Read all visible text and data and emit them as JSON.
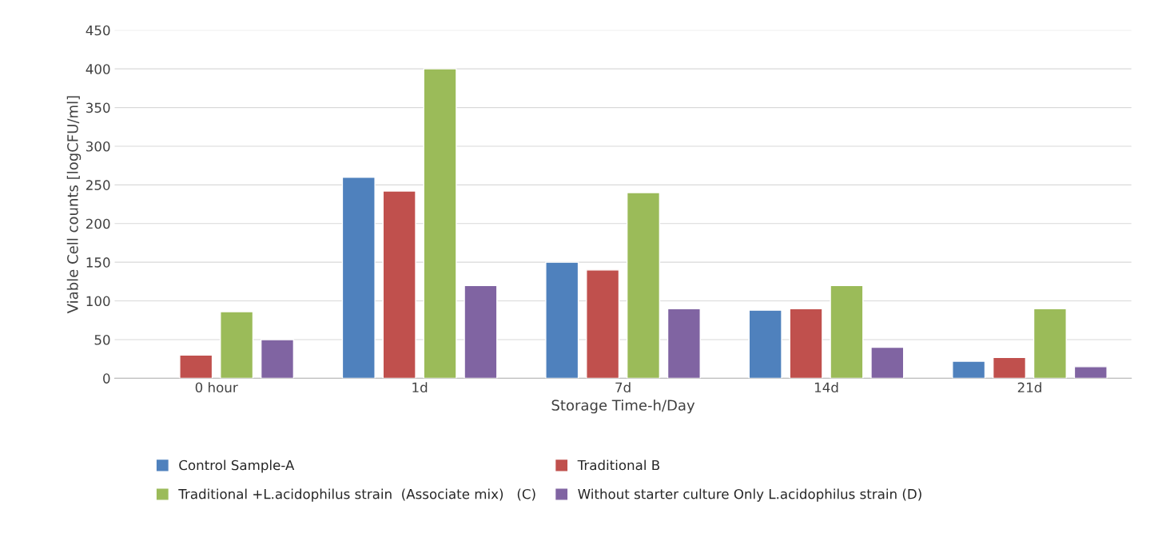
{
  "chart_data": {
    "type": "bar",
    "xlabel": "Storage Time-h/Day",
    "ylabel": "Viable Cell counts [logCFU/ml]",
    "categories": [
      "0 hour",
      "1d",
      "7d",
      "14d",
      "21d"
    ],
    "series": [
      {
        "name": "Control Sample-A",
        "color": "#4f81bd",
        "values": [
          null,
          260,
          150,
          88,
          22
        ]
      },
      {
        "name": "Traditional B",
        "color": "#c0504d",
        "values": [
          30,
          242,
          140,
          90,
          27
        ]
      },
      {
        "name": "Traditional +L.acidophilus strain  (Associate mix)   (C)",
        "color": "#9bbb59",
        "values": [
          86,
          400,
          240,
          120,
          90
        ]
      },
      {
        "name": "Without starter culture Only L.acidophilus strain (D)",
        "color": "#8064a2",
        "values": [
          50,
          120,
          90,
          40,
          15
        ]
      }
    ],
    "ylim": [
      0,
      450
    ],
    "yticks": [
      0,
      50,
      100,
      150,
      200,
      250,
      300,
      350,
      400,
      450
    ],
    "grid": "y",
    "legend": "bottom"
  }
}
